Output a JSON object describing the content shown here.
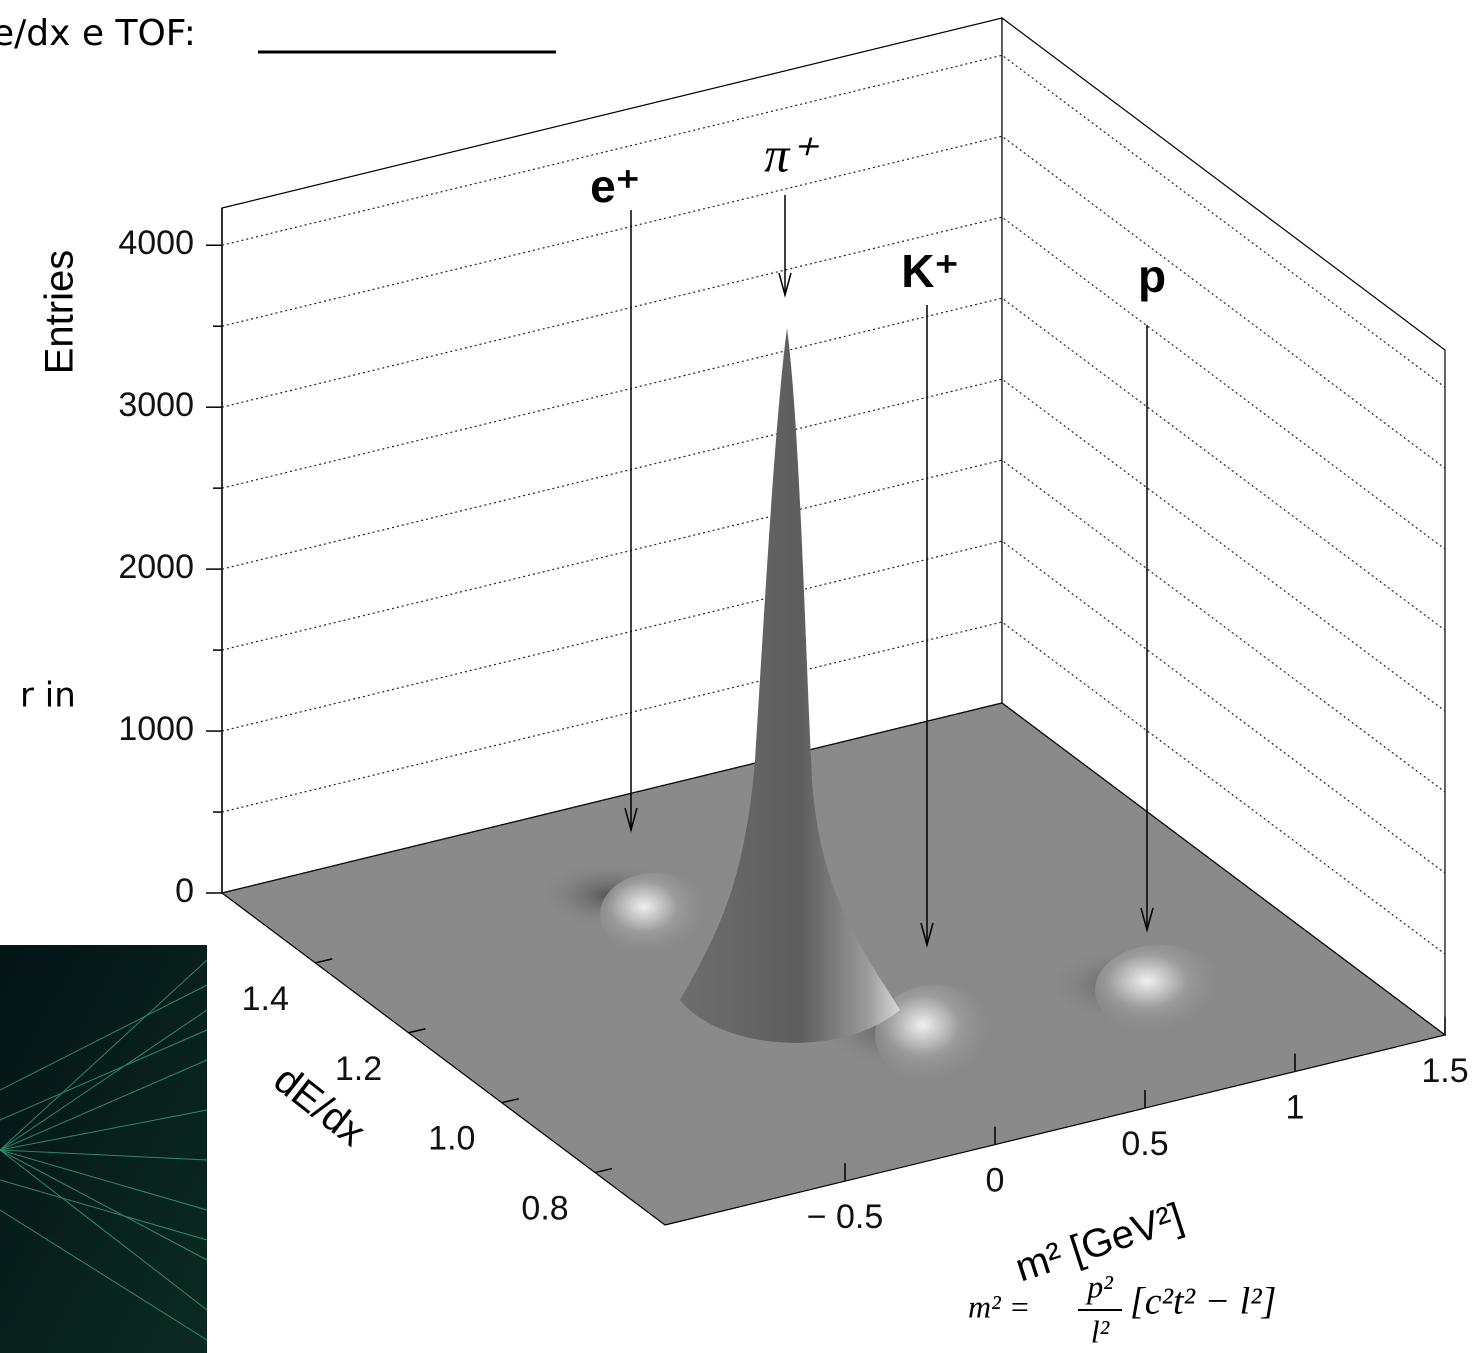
{
  "header": {
    "title": "e/dx e TOF:",
    "side_text": "r in"
  },
  "chart_data": {
    "type": "surface3d",
    "zlabel": "Entries",
    "xlabel": "m² [GeV²]",
    "ylabel": "dE/dx",
    "zlim": [
      0,
      4230
    ],
    "zticks": [
      0,
      1000,
      2000,
      3000,
      4000
    ],
    "zminor_ticks": [
      500,
      1500,
      2500,
      3500
    ],
    "xlim": [
      -1.1,
      1.5
    ],
    "xticks": [
      {
        "value": -0.5,
        "label": "− 0.5"
      },
      0,
      0.5,
      1,
      1.5
    ],
    "ylim": [
      0.65,
      1.6
    ],
    "yticks": [
      0.8,
      {
        "value": 1.0,
        "label": "1.0"
      },
      1.2,
      1.4
    ],
    "grid": true,
    "color": "#8a8a8a",
    "annotations": [
      "e⁺",
      "π⁺",
      "K⁺",
      "p"
    ]
  },
  "formula": {
    "lhs": "m² =",
    "num": "p²",
    "den": "l²",
    "bracket": "[c²t² − l²]"
  }
}
